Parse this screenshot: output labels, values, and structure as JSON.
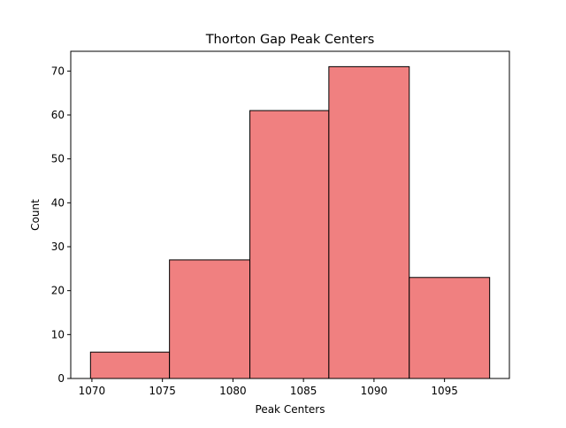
{
  "chart_data": {
    "type": "bar",
    "title": "Thorton Gap Peak Centers",
    "xlabel": "Peak Centers",
    "ylabel": "Count",
    "bins": [
      {
        "x0": 1069.9,
        "x1": 1075.5,
        "count": 6
      },
      {
        "x0": 1075.5,
        "x1": 1081.2,
        "count": 27
      },
      {
        "x0": 1081.2,
        "x1": 1086.8,
        "count": 61
      },
      {
        "x0": 1086.8,
        "x1": 1092.5,
        "count": 71
      },
      {
        "x0": 1092.5,
        "x1": 1098.2,
        "count": 23
      }
    ],
    "xlim": [
      1068.5,
      1099.6
    ],
    "ylim": [
      0,
      74.5
    ],
    "xticks": [
      1070,
      1075,
      1080,
      1085,
      1090,
      1095
    ],
    "yticks": [
      0,
      10,
      20,
      30,
      40,
      50,
      60,
      70
    ],
    "bar_color": "#f08080",
    "edge_color": "#000000",
    "grid": false,
    "legend": "none"
  }
}
